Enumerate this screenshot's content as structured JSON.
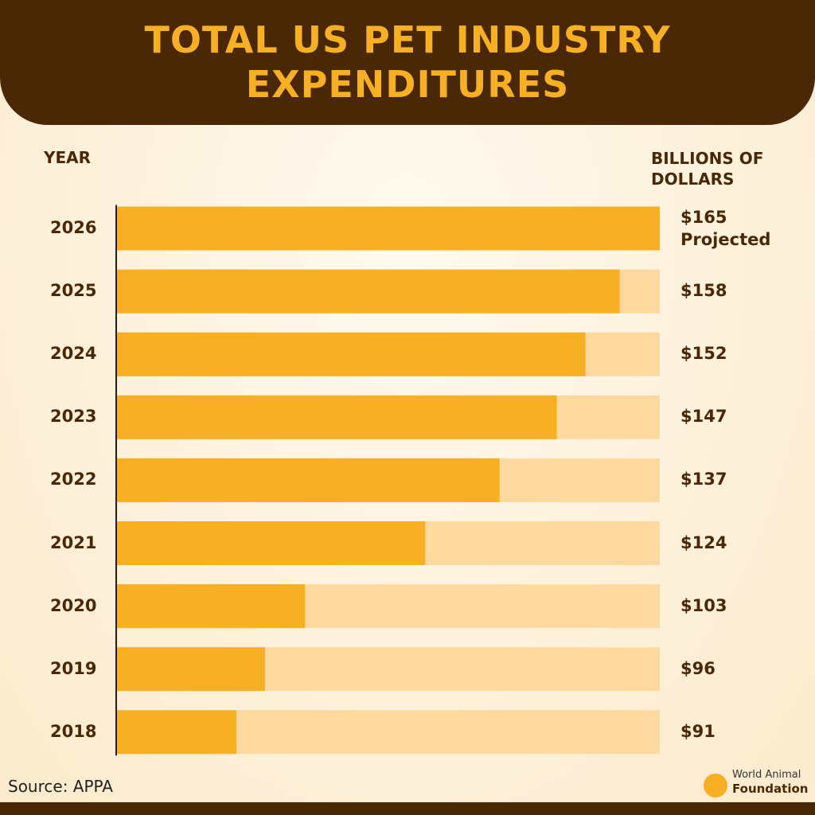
{
  "chart_data": {
    "type": "barh",
    "title": "TOTAL US PET INDUSTRY EXPENDITURES",
    "category_axis_label": "YEAR",
    "value_axis_label": "BILLIONS OF DOLLARS",
    "categories": [
      "2026",
      "2025",
      "2024",
      "2023",
      "2022",
      "2021",
      "2020",
      "2019",
      "2018"
    ],
    "values": [
      165,
      158,
      152,
      147,
      137,
      124,
      103,
      96,
      91
    ],
    "value_labels": [
      "$165",
      "$158",
      "$152",
      "$147",
      "$137",
      "$124",
      "$103",
      "$96",
      "$91"
    ],
    "annotation": "Projected",
    "color": "#f7b024",
    "xlim": [
      70,
      165
    ],
    "source": "Source:  APPA",
    "logo": {
      "line1": "World Animal",
      "line2": "Foundation"
    }
  }
}
